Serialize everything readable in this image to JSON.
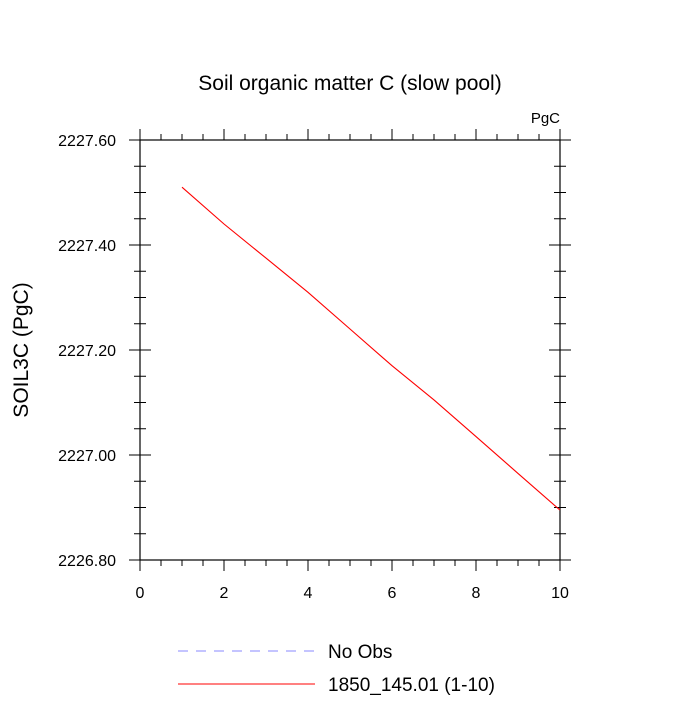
{
  "chart_data": {
    "type": "line",
    "title": "Soil organic matter C (slow pool)",
    "units_label": "PgC",
    "ylabel": "SOIL3C  (PgC)",
    "xlabel": "",
    "xlim": [
      0,
      10
    ],
    "ylim": [
      2226.8,
      2227.6
    ],
    "x_ticks": [
      0,
      2,
      4,
      6,
      8,
      10
    ],
    "x_tick_labels": [
      "0",
      "2",
      "4",
      "6",
      "8",
      "10"
    ],
    "y_ticks": [
      2226.8,
      2227.0,
      2227.2,
      2227.4,
      2227.6
    ],
    "y_tick_labels": [
      "2226.80",
      "2227.00",
      "2227.20",
      "2227.40",
      "2227.60"
    ],
    "grid": false,
    "legend_position": "bottom",
    "series": [
      {
        "name": "No Obs",
        "color": "#8a8aff",
        "dashed": true,
        "x": [],
        "y": []
      },
      {
        "name": "1850_145.01 (1-10)",
        "color": "#ff0000",
        "dashed": false,
        "x": [
          1,
          2,
          3,
          4,
          5,
          6,
          7,
          8,
          9,
          10
        ],
        "y": [
          2227.51,
          2227.44,
          2227.375,
          2227.31,
          2227.24,
          2227.17,
          2227.105,
          2227.035,
          2226.965,
          2226.895
        ]
      }
    ]
  }
}
